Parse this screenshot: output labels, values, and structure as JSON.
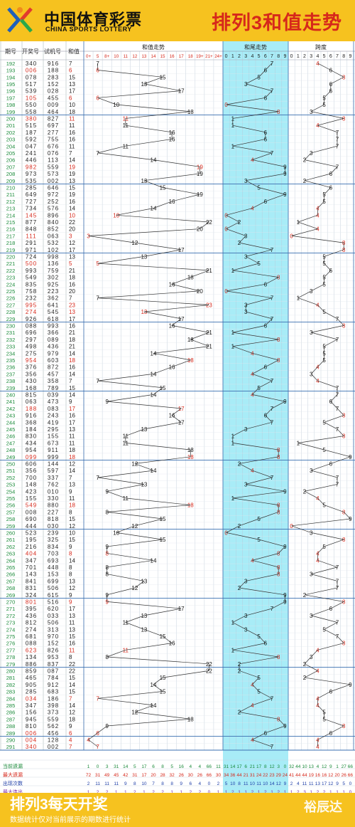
{
  "header": {
    "logo_cn": "中国体育彩票",
    "logo_en": "CHINA SPORTS LOTTERY",
    "title": "排列3和值走势"
  },
  "footer": {
    "title": "排列3每天开奖",
    "note": "数据统计仅对当前展示的期数进行统计",
    "brand": "裕辰达"
  },
  "colors": {
    "accent": "#d6281b",
    "brand": "#f6c21f",
    "highlight": "#a8ecf7",
    "row_green": "#1a8a3a"
  },
  "chart_data": {
    "type": "table",
    "columns": [
      "期号",
      "开奖号",
      "试机号",
      "和值"
    ],
    "section_labels": [
      "和值走势",
      "和尾走势",
      "跨度"
    ],
    "sum_ticks": [
      "0+",
      "5",
      "8+",
      "10",
      "11",
      "12",
      "13",
      "14",
      "15",
      "16",
      "17",
      "18",
      "19+",
      "21+",
      "24+"
    ],
    "tail_ticks": [
      "0",
      "1",
      "2",
      "3",
      "4",
      "5",
      "6",
      "7",
      "8",
      "9"
    ],
    "span_ticks": [
      "0",
      "1",
      "2",
      "3",
      "4",
      "5",
      "6",
      "7",
      "8",
      "9"
    ],
    "rows": [
      [
        "192",
        "340",
        "916",
        7
      ],
      [
        "193",
        "006",
        "188",
        6
      ],
      [
        "194",
        "078",
        "283",
        15
      ],
      [
        "195",
        "517",
        "152",
        13
      ],
      [
        "196",
        "539",
        "028",
        17
      ],
      [
        "197",
        "105",
        "455",
        6
      ],
      [
        "198",
        "550",
        "009",
        10
      ],
      [
        "199",
        "558",
        "464",
        18
      ],
      [
        "200",
        "380",
        "827",
        11
      ],
      [
        "201",
        "515",
        "697",
        11
      ],
      [
        "202",
        "187",
        "277",
        16
      ],
      [
        "203",
        "592",
        "755",
        16
      ],
      [
        "204",
        "047",
        "676",
        11
      ],
      [
        "205",
        "241",
        "076",
        7
      ],
      [
        "206",
        "446",
        "113",
        14
      ],
      [
        "207",
        "982",
        "559",
        19
      ],
      [
        "208",
        "973",
        "573",
        19
      ],
      [
        "209",
        "535",
        "002",
        13
      ],
      [
        "210",
        "285",
        "646",
        15
      ],
      [
        "211",
        "649",
        "972",
        19
      ],
      [
        "212",
        "727",
        "252",
        16
      ],
      [
        "213",
        "734",
        "576",
        14
      ],
      [
        "214",
        "145",
        "896",
        10
      ],
      [
        "215",
        "877",
        "840",
        22
      ],
      [
        "216",
        "848",
        "852",
        20
      ],
      [
        "217",
        "111",
        "063",
        3
      ],
      [
        "218",
        "291",
        "532",
        12
      ],
      [
        "219",
        "971",
        "102",
        17
      ],
      [
        "220",
        "724",
        "998",
        13
      ],
      [
        "221",
        "500",
        "136",
        5
      ],
      [
        "222",
        "993",
        "759",
        21
      ],
      [
        "223",
        "549",
        "302",
        18
      ],
      [
        "224",
        "835",
        "925",
        16
      ],
      [
        "225",
        "758",
        "223",
        20
      ],
      [
        "226",
        "232",
        "362",
        7
      ],
      [
        "227",
        "995",
        "641",
        23
      ],
      [
        "228",
        "274",
        "545",
        13
      ],
      [
        "229",
        "926",
        "618",
        17
      ],
      [
        "230",
        "088",
        "993",
        16
      ],
      [
        "231",
        "696",
        "366",
        21
      ],
      [
        "232",
        "297",
        "089",
        18
      ],
      [
        "233",
        "498",
        "436",
        21
      ],
      [
        "234",
        "275",
        "979",
        14
      ],
      [
        "235",
        "954",
        "603",
        18
      ],
      [
        "236",
        "376",
        "872",
        16
      ],
      [
        "237",
        "356",
        "457",
        14
      ],
      [
        "238",
        "430",
        "358",
        7
      ],
      [
        "239",
        "168",
        "789",
        15
      ],
      [
        "240",
        "815",
        "039",
        14
      ],
      [
        "241",
        "063",
        "473",
        9
      ],
      [
        "242",
        "188",
        "083",
        17
      ],
      [
        "243",
        "916",
        "243",
        16
      ],
      [
        "244",
        "368",
        "419",
        17
      ],
      [
        "245",
        "184",
        "295",
        13
      ],
      [
        "246",
        "830",
        "155",
        11
      ],
      [
        "247",
        "434",
        "673",
        11
      ],
      [
        "248",
        "954",
        "911",
        18
      ],
      [
        "249",
        "099",
        "999",
        18
      ],
      [
        "250",
        "606",
        "144",
        12
      ],
      [
        "251",
        "356",
        "597",
        14
      ],
      [
        "252",
        "700",
        "337",
        7
      ],
      [
        "253",
        "148",
        "762",
        13
      ],
      [
        "254",
        "423",
        "010",
        9
      ],
      [
        "255",
        "155",
        "330",
        11
      ],
      [
        "256",
        "549",
        "880",
        18
      ],
      [
        "257",
        "008",
        "227",
        8
      ],
      [
        "258",
        "690",
        "818",
        15
      ],
      [
        "259",
        "444",
        "030",
        12
      ],
      [
        "260",
        "523",
        "239",
        10
      ],
      [
        "261",
        "195",
        "325",
        15
      ],
      [
        "262",
        "216",
        "834",
        9
      ],
      [
        "263",
        "404",
        "703",
        8
      ],
      [
        "264",
        "347",
        "693",
        14
      ],
      [
        "265",
        "701",
        "448",
        8
      ],
      [
        "266",
        "143",
        "153",
        8
      ],
      [
        "267",
        "841",
        "699",
        13
      ],
      [
        "268",
        "831",
        "506",
        12
      ],
      [
        "269",
        "324",
        "615",
        9
      ],
      [
        "270",
        "801",
        "516",
        9
      ],
      [
        "271",
        "395",
        "620",
        17
      ],
      [
        "272",
        "436",
        "033",
        13
      ],
      [
        "273",
        "812",
        "506",
        11
      ],
      [
        "274",
        "274",
        "313",
        13
      ],
      [
        "275",
        "681",
        "970",
        15
      ],
      [
        "276",
        "088",
        "152",
        16
      ],
      [
        "277",
        "623",
        "826",
        11
      ],
      [
        "278",
        "134",
        "953",
        8
      ],
      [
        "279",
        "886",
        "837",
        22
      ],
      [
        "280",
        "859",
        "087",
        22
      ],
      [
        "281",
        "465",
        "784",
        15
      ],
      [
        "282",
        "905",
        "912",
        14
      ],
      [
        "283",
        "285",
        "683",
        15
      ],
      [
        "284",
        "034",
        "186",
        7
      ],
      [
        "285",
        "347",
        "398",
        14
      ],
      [
        "286",
        "156",
        "373",
        12
      ],
      [
        "287",
        "945",
        "559",
        18
      ],
      [
        "288",
        "810",
        "562",
        9
      ],
      [
        "289",
        "006",
        "456",
        6
      ],
      [
        "290",
        "004",
        "128",
        4
      ],
      [
        "291",
        "340",
        "002",
        7
      ]
    ],
    "stats": {
      "labels": [
        "当前遗漏",
        "最大遗漏",
        "出现次数",
        "最大连出"
      ],
      "sum": [
        [
          "1",
          "0",
          "3",
          "31",
          "14",
          "5",
          "17",
          "6",
          "8",
          "5",
          "16",
          "4",
          "4",
          "66",
          "11"
        ],
        [
          "72",
          "31",
          "49",
          "45",
          "42",
          "31",
          "17",
          "20",
          "28",
          "32",
          "26",
          "30",
          "26",
          "66",
          "30"
        ],
        [
          "2",
          "11",
          "11",
          "11",
          "9",
          "8",
          "10",
          "7",
          "8",
          "8",
          "9",
          "6",
          "4",
          "0",
          "2"
        ],
        [
          "1",
          "2",
          "2",
          "1",
          "1",
          "2",
          "1",
          "2",
          "2",
          "1",
          "1",
          "2",
          "2",
          "0",
          "1"
        ]
      ],
      "tail": [
        [
          "31",
          "14",
          "17",
          "6",
          "21",
          "17",
          "8",
          "12",
          "3",
          "0"
        ],
        [
          "34",
          "36",
          "44",
          "21",
          "31",
          "24",
          "22",
          "23",
          "29",
          "24"
        ],
        [
          "5",
          "10",
          "8",
          "11",
          "10",
          "11",
          "10",
          "14",
          "12",
          "9"
        ],
        [
          "1",
          "2",
          "1",
          "1",
          "2",
          "1",
          "2",
          "1",
          "2",
          "1"
        ]
      ],
      "span": [
        [
          "32",
          "44",
          "10",
          "13",
          "4",
          "12",
          "9",
          "1",
          "27",
          "66"
        ],
        [
          "41",
          "44",
          "44",
          "19",
          "16",
          "16",
          "12",
          "20",
          "26",
          "66"
        ],
        [
          "2",
          "4",
          "11",
          "11",
          "13",
          "17",
          "12",
          "9",
          "5",
          "0"
        ],
        [
          "1",
          "2",
          "3",
          "1",
          "2",
          "2",
          "1",
          "1",
          "1",
          "0"
        ]
      ]
    }
  }
}
